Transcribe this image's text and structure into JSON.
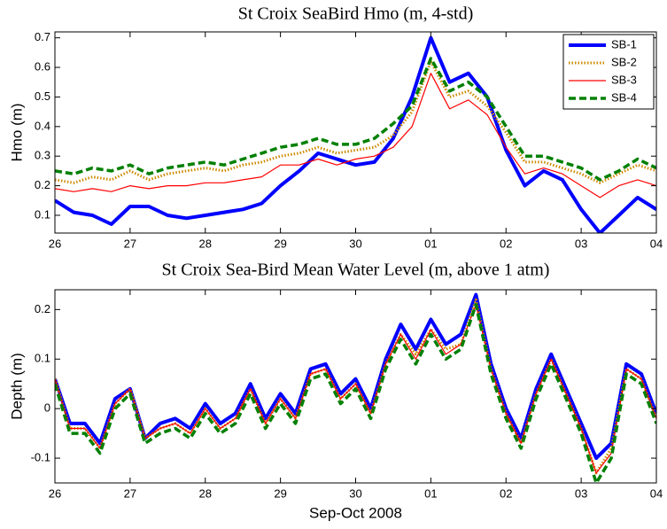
{
  "chart_data": [
    {
      "type": "line",
      "title": "St Croix SeaBird Hmo (m, 4-std)",
      "y_label": "Hmo (m)",
      "x": [
        26,
        26.25,
        26.5,
        26.75,
        27,
        27.25,
        27.5,
        27.75,
        28,
        28.25,
        28.5,
        28.75,
        29,
        29.25,
        29.5,
        29.75,
        30,
        30.25,
        30.5,
        30.75,
        31,
        31.25,
        31.5,
        31.75,
        32,
        32.25,
        32.5,
        32.75,
        33,
        33.25,
        33.5,
        33.75,
        34
      ],
      "xlim": [
        26,
        34
      ],
      "xticks": [
        26,
        27,
        28,
        29,
        30,
        {
          "value": 31,
          "label": "01"
        },
        {
          "value": 32,
          "label": "02"
        },
        {
          "value": 33,
          "label": "03"
        },
        {
          "value": 34,
          "label": "04"
        }
      ],
      "ylim": [
        0.04,
        0.72
      ],
      "yticks": [
        0.1,
        0.2,
        0.3,
        0.4,
        0.5,
        0.6,
        0.7
      ],
      "legend": "upper right",
      "series": [
        {
          "name": "SB-1",
          "color": "#0000ff",
          "style": "solid",
          "linewidth": 4,
          "values": [
            0.15,
            0.11,
            0.1,
            0.07,
            0.13,
            0.13,
            0.1,
            0.09,
            0.1,
            0.11,
            0.12,
            0.14,
            0.2,
            0.25,
            0.31,
            0.29,
            0.27,
            0.28,
            0.36,
            0.5,
            0.7,
            0.55,
            0.58,
            0.5,
            0.32,
            0.2,
            0.25,
            0.22,
            0.12,
            0.04,
            0.1,
            0.16,
            0.12
          ]
        },
        {
          "name": "SB-2",
          "color": "#cc8a00",
          "style": "dotted",
          "linewidth": 3,
          "values": [
            0.22,
            0.21,
            0.23,
            0.22,
            0.25,
            0.22,
            0.24,
            0.25,
            0.26,
            0.25,
            0.27,
            0.28,
            0.3,
            0.31,
            0.33,
            0.31,
            0.32,
            0.33,
            0.37,
            0.45,
            0.62,
            0.5,
            0.52,
            0.47,
            0.38,
            0.28,
            0.28,
            0.26,
            0.24,
            0.21,
            0.24,
            0.27,
            0.25
          ]
        },
        {
          "name": "SB-3",
          "color": "#ff0000",
          "style": "solid",
          "linewidth": 1.2,
          "values": [
            0.19,
            0.18,
            0.19,
            0.18,
            0.2,
            0.19,
            0.2,
            0.2,
            0.21,
            0.21,
            0.22,
            0.23,
            0.27,
            0.27,
            0.29,
            0.27,
            0.29,
            0.3,
            0.33,
            0.4,
            0.58,
            0.46,
            0.49,
            0.44,
            0.33,
            0.24,
            0.26,
            0.24,
            0.2,
            0.16,
            0.2,
            0.22,
            0.2
          ]
        },
        {
          "name": "SB-4",
          "color": "#008000",
          "style": "dashed",
          "linewidth": 3.5,
          "values": [
            0.25,
            0.24,
            0.26,
            0.25,
            0.27,
            0.24,
            0.26,
            0.27,
            0.28,
            0.27,
            0.29,
            0.31,
            0.33,
            0.34,
            0.36,
            0.34,
            0.34,
            0.36,
            0.41,
            0.47,
            0.63,
            0.52,
            0.55,
            0.5,
            0.4,
            0.3,
            0.3,
            0.28,
            0.26,
            0.22,
            0.25,
            0.29,
            0.26
          ]
        }
      ]
    },
    {
      "type": "line",
      "title": "St Croix Sea-Bird Mean Water Level (m, above 1 atm)",
      "y_label": "Depth (m)",
      "x_label": "Sep-Oct 2008",
      "x": [
        26,
        26.2,
        26.4,
        26.6,
        26.8,
        27,
        27.2,
        27.4,
        27.6,
        27.8,
        28,
        28.2,
        28.4,
        28.6,
        28.8,
        29,
        29.2,
        29.4,
        29.6,
        29.8,
        30,
        30.2,
        30.4,
        30.6,
        30.8,
        31,
        31.2,
        31.4,
        31.6,
        31.8,
        32,
        32.2,
        32.4,
        32.6,
        32.8,
        33,
        33.2,
        33.4,
        33.6,
        33.8,
        34
      ],
      "xlim": [
        26,
        34
      ],
      "xticks": [
        26,
        27,
        28,
        29,
        30,
        {
          "value": 31,
          "label": "01"
        },
        {
          "value": 32,
          "label": "02"
        },
        {
          "value": 33,
          "label": "03"
        },
        {
          "value": 34,
          "label": "04"
        }
      ],
      "ylim": [
        -0.15,
        0.24
      ],
      "yticks": [
        -0.1,
        0,
        0.1,
        0.2
      ],
      "series": [
        {
          "color": "#0000ff",
          "style": "solid",
          "linewidth": 4,
          "values": [
            0.06,
            -0.03,
            -0.03,
            -0.07,
            0.02,
            0.04,
            -0.06,
            -0.03,
            -0.02,
            -0.04,
            0.01,
            -0.03,
            -0.01,
            0.05,
            -0.02,
            0.03,
            -0.01,
            0.08,
            0.09,
            0.03,
            0.06,
            0.0,
            0.1,
            0.17,
            0.12,
            0.18,
            0.13,
            0.15,
            0.23,
            0.09,
            0.0,
            -0.06,
            0.04,
            0.11,
            0.04,
            -0.03,
            -0.1,
            -0.07,
            0.09,
            0.07,
            -0.01
          ]
        },
        {
          "color": "#cc8a00",
          "style": "dotted",
          "linewidth": 3,
          "values": [
            0.06,
            -0.04,
            -0.04,
            -0.08,
            0.01,
            0.04,
            -0.06,
            -0.04,
            -0.03,
            -0.05,
            0.0,
            -0.04,
            -0.02,
            0.04,
            -0.03,
            0.02,
            -0.02,
            0.07,
            0.08,
            0.02,
            0.05,
            -0.01,
            0.09,
            0.15,
            0.11,
            0.16,
            0.12,
            0.13,
            0.22,
            0.08,
            -0.01,
            -0.07,
            0.03,
            0.1,
            0.03,
            -0.04,
            -0.13,
            -0.08,
            0.08,
            0.06,
            -0.02
          ]
        },
        {
          "color": "#ff0000",
          "style": "solid",
          "linewidth": 1.2,
          "values": [
            0.06,
            -0.04,
            -0.04,
            -0.08,
            0.01,
            0.04,
            -0.06,
            -0.04,
            -0.03,
            -0.05,
            0.0,
            -0.04,
            -0.02,
            0.04,
            -0.03,
            0.02,
            -0.02,
            0.07,
            0.08,
            0.02,
            0.05,
            -0.01,
            0.09,
            0.15,
            0.1,
            0.16,
            0.11,
            0.13,
            0.21,
            0.08,
            -0.01,
            -0.07,
            0.03,
            0.1,
            0.03,
            -0.04,
            -0.13,
            -0.09,
            0.08,
            0.06,
            -0.02
          ]
        },
        {
          "color": "#008000",
          "style": "dashed",
          "linewidth": 3.5,
          "values": [
            0.05,
            -0.05,
            -0.05,
            -0.09,
            0.0,
            0.03,
            -0.07,
            -0.05,
            -0.04,
            -0.06,
            -0.01,
            -0.05,
            -0.03,
            0.03,
            -0.04,
            0.01,
            -0.03,
            0.06,
            0.07,
            0.01,
            0.04,
            -0.02,
            0.08,
            0.14,
            0.09,
            0.15,
            0.1,
            0.12,
            0.21,
            0.07,
            -0.02,
            -0.08,
            0.02,
            0.09,
            0.02,
            -0.05,
            -0.15,
            -0.1,
            0.07,
            0.05,
            -0.03
          ]
        }
      ]
    }
  ]
}
